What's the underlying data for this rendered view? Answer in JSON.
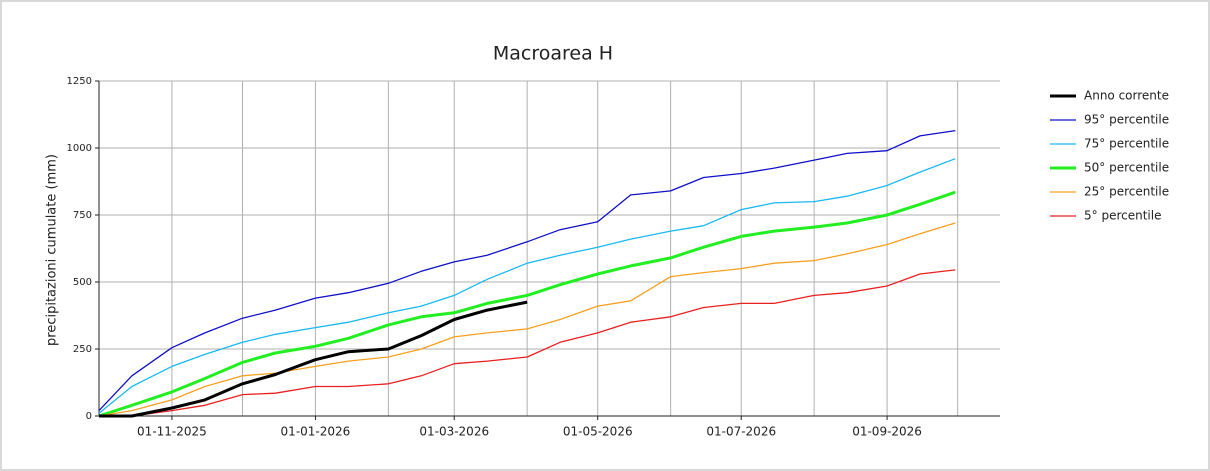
{
  "chart_data": {
    "type": "line",
    "title": "Macroarea H",
    "ylabel": "precipitazioni cumulate (mm)",
    "x": [
      "2025-10-01",
      "2025-10-15",
      "2025-11-01",
      "2025-11-15",
      "2025-12-01",
      "2025-12-15",
      "2026-01-01",
      "2026-01-15",
      "2026-02-01",
      "2026-02-15",
      "2026-03-01",
      "2026-03-15",
      "2026-04-01",
      "2026-04-15",
      "2026-05-01",
      "2026-05-15",
      "2026-06-01",
      "2026-06-15",
      "2026-07-01",
      "2026-07-15",
      "2026-08-01",
      "2026-08-15",
      "2026-09-01",
      "2026-09-15",
      "2026-09-30"
    ],
    "series": [
      {
        "name": "Anno corrente",
        "color": "#000000",
        "width": 3,
        "values": [
          0,
          0,
          30,
          60,
          120,
          155,
          210,
          240,
          250,
          300,
          360,
          395,
          425,
          null,
          null,
          null,
          null,
          null,
          null,
          null,
          null,
          null,
          null,
          null,
          null
        ]
      },
      {
        "name": "95° percentile",
        "color": "#1010c8",
        "width": 1.3,
        "values": [
          20,
          150,
          255,
          310,
          365,
          395,
          440,
          460,
          495,
          540,
          575,
          600,
          650,
          695,
          725,
          825,
          840,
          890,
          905,
          925,
          955,
          980,
          990,
          1045,
          1065
        ]
      },
      {
        "name": "75° percentile",
        "color": "#19b8f0",
        "width": 1.3,
        "values": [
          10,
          110,
          185,
          230,
          275,
          305,
          330,
          350,
          385,
          410,
          450,
          510,
          570,
          600,
          630,
          660,
          690,
          710,
          770,
          795,
          800,
          820,
          860,
          910,
          960
        ]
      },
      {
        "name": "50° percentile",
        "color": "#22ee22",
        "width": 3,
        "values": [
          0,
          40,
          90,
          140,
          200,
          235,
          260,
          290,
          340,
          370,
          385,
          420,
          450,
          490,
          530,
          560,
          590,
          630,
          670,
          690,
          705,
          720,
          750,
          790,
          835
        ]
      },
      {
        "name": "25° percentile",
        "color": "#f5a020",
        "width": 1.3,
        "values": [
          0,
          20,
          60,
          110,
          150,
          160,
          185,
          205,
          220,
          250,
          295,
          310,
          325,
          360,
          410,
          430,
          520,
          535,
          550,
          570,
          580,
          605,
          640,
          680,
          720
        ]
      },
      {
        "name": "5° percentile",
        "color": "#e82020",
        "width": 1.3,
        "values": [
          0,
          0,
          20,
          40,
          80,
          85,
          110,
          110,
          120,
          150,
          195,
          205,
          220,
          275,
          310,
          350,
          370,
          405,
          420,
          420,
          450,
          460,
          485,
          530,
          545
        ]
      }
    ],
    "xlim": [
      "2025-10-01",
      "2026-10-19"
    ],
    "xticks": [
      {
        "value": "2025-11-01",
        "label": "01-11-2025"
      },
      {
        "value": "2026-01-01",
        "label": "01-01-2026"
      },
      {
        "value": "2026-03-01",
        "label": "01-03-2026"
      },
      {
        "value": "2026-05-01",
        "label": "01-05-2026"
      },
      {
        "value": "2026-07-01",
        "label": "01-07-2026"
      },
      {
        "value": "2026-09-01",
        "label": "01-09-2026"
      }
    ],
    "xminor_ticks": [
      "2025-12-01",
      "2026-02-01",
      "2026-04-01",
      "2026-06-01",
      "2026-08-01",
      "2026-10-01"
    ],
    "ylim": [
      0,
      1250
    ],
    "yticks": [
      0,
      250,
      500,
      750,
      1000,
      1250
    ],
    "grid": true,
    "legend": "right"
  }
}
